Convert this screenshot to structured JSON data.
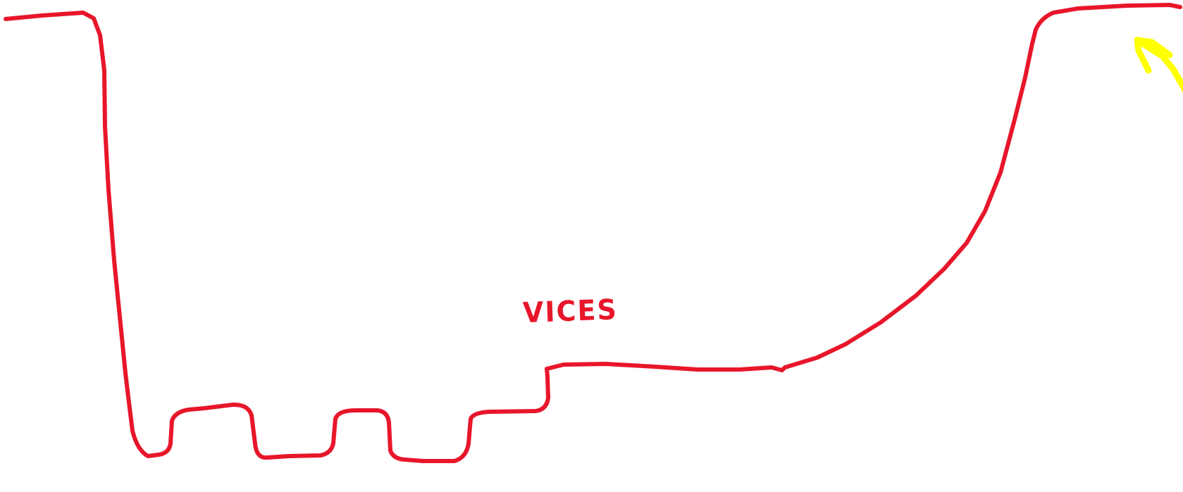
{
  "drawing": {
    "label": "VICES",
    "colors": {
      "line": "#e8162a",
      "arrow": "#ffff00",
      "background": "#ffffff"
    },
    "icons": [
      "arrow-up-left-icon"
    ]
  }
}
